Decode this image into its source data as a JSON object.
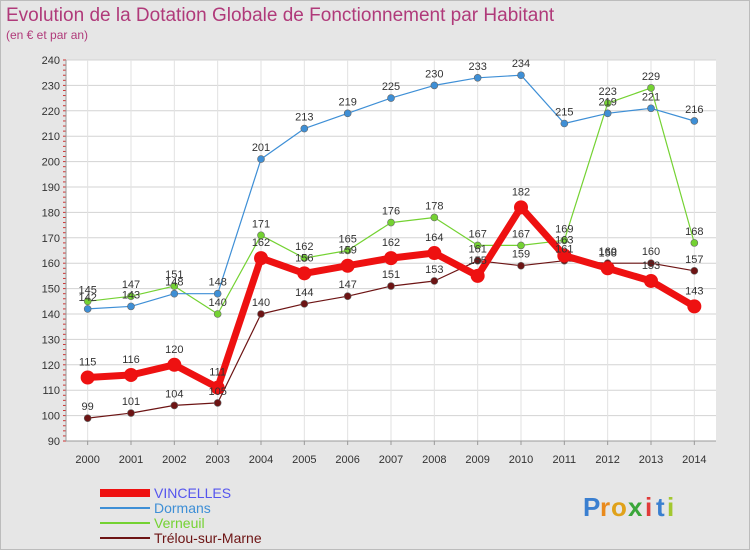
{
  "chart_data": {
    "type": "line",
    "title": "Evolution de la Dotation Globale de Fonctionnement par Habitant",
    "subtitle": "(en € et par an)",
    "xlabel": "",
    "ylabel": "",
    "x": [
      "2000",
      "2001",
      "2002",
      "2003",
      "2004",
      "2005",
      "2006",
      "2007",
      "2008",
      "2009",
      "2010",
      "2011",
      "2012",
      "2013",
      "2014"
    ],
    "ylim": [
      90,
      240
    ],
    "yticks": [
      90,
      100,
      110,
      120,
      130,
      140,
      150,
      160,
      170,
      180,
      190,
      200,
      210,
      220,
      230,
      240
    ],
    "grid": true,
    "legend_position": "bottom-left",
    "series": [
      {
        "name": "VINCELLES",
        "color": "#ee1111",
        "values": [
          115,
          116,
          120,
          111,
          162,
          156,
          159,
          162,
          164,
          155,
          182,
          163,
          158,
          153,
          143
        ],
        "labels": [
          "115",
          "116",
          "120",
          "111",
          "162",
          "156",
          "159",
          "162",
          "164",
          "155",
          "182",
          "163",
          "158",
          "153",
          "143"
        ]
      },
      {
        "name": "Dormans",
        "color": "#3e8fd6",
        "values": [
          142,
          143,
          148,
          148,
          201,
          213,
          219,
          225,
          230,
          233,
          234,
          215,
          219,
          221,
          216
        ],
        "labels": [
          "142",
          "143",
          "148",
          "148",
          "201",
          "213",
          "219",
          "225",
          "230",
          "233",
          "234",
          "215",
          "219",
          "221",
          "216"
        ]
      },
      {
        "name": "Verneuil",
        "color": "#74d232",
        "values": [
          145,
          147,
          151,
          140,
          171,
          162,
          165,
          176,
          178,
          167,
          167,
          169,
          223,
          229,
          168
        ],
        "labels": [
          "145",
          "147",
          "151",
          "140",
          "171",
          "162",
          "165",
          "176",
          "178",
          "167",
          "167",
          "169",
          "223",
          "229",
          "168"
        ]
      },
      {
        "name": "Trélou-sur-Marne",
        "color": "#6d1414",
        "values": [
          99,
          101,
          104,
          105,
          140,
          144,
          147,
          151,
          153,
          161,
          159,
          161,
          160,
          160,
          157
        ],
        "labels": [
          "99",
          "101",
          "104",
          "105",
          "140",
          "144",
          "147",
          "151",
          "153",
          "161",
          "159",
          "161",
          "160",
          "160",
          "157"
        ]
      }
    ]
  },
  "logo": {
    "letters": [
      "P",
      "r",
      "o",
      "x",
      "i",
      "t",
      "i"
    ],
    "colors": [
      "#3a7fd0",
      "#e98a1c",
      "#e0a21a",
      "#3aa63a",
      "#e03a3a",
      "#3a7fd0",
      "#a3c830"
    ]
  }
}
